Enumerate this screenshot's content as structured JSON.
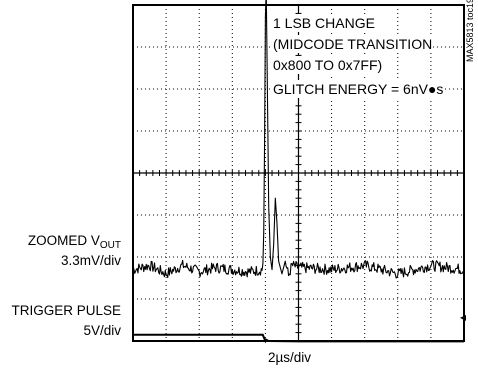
{
  "chart_data": {
    "type": "line",
    "title": "",
    "xlabel": "2µs/div",
    "ylabel": "",
    "grid": true,
    "divisions": {
      "x": 10,
      "y": 8
    },
    "x_units": "div",
    "x_range": [
      0,
      10
    ],
    "series": [
      {
        "scale": "3.3mV/div",
        "baseline_div": 1.7,
        "x": [
          0.0,
          0.5,
          1.0,
          1.5,
          2.0,
          2.5,
          3.0,
          3.5,
          3.92,
          3.96,
          4.0,
          4.02,
          4.05,
          4.1,
          4.15,
          4.2,
          4.25,
          4.3,
          4.35,
          4.4,
          4.45,
          4.5,
          4.6,
          4.7,
          4.8,
          5.0,
          6.0,
          7.0,
          8.0,
          9.0,
          10.0
        ],
        "y": [
          0.0,
          0.1,
          -0.1,
          0.1,
          -0.05,
          0.05,
          0.0,
          -0.05,
          0.0,
          1.2,
          6.0,
          7.0,
          5.0,
          1.5,
          0.3,
          0.0,
          0.6,
          1.7,
          1.1,
          0.2,
          0.05,
          -0.1,
          0.2,
          -0.15,
          0.1,
          0.05,
          0.0,
          0.1,
          -0.1,
          0.1,
          0.0
        ]
      },
      {
        "scale": "5V/div",
        "baseline_div": 0.15,
        "x": [
          0.0,
          3.92,
          4.0,
          4.02,
          4.1,
          5.0,
          10.0
        ],
        "y": [
          0.0,
          0.0,
          -0.15,
          -0.12,
          -0.15,
          -0.16,
          -0.16
        ]
      }
    ],
    "annotations": {
      "lines": [
        "1 LSB CHANGE",
        "(MIDCODE TRANSITION",
        "0x800 TO 0x7FF)",
        "GLITCH ENERGY = 6nV●s"
      ]
    },
    "labels": {
      "vout_name": "ZOOMED V",
      "vout_sub": "OUT",
      "vout_scale": "3.3mV/div",
      "trigger_name": "TRIGGER PULSE",
      "trigger_scale": "5V/div",
      "part_id": "MAX5813 toc19"
    }
  }
}
